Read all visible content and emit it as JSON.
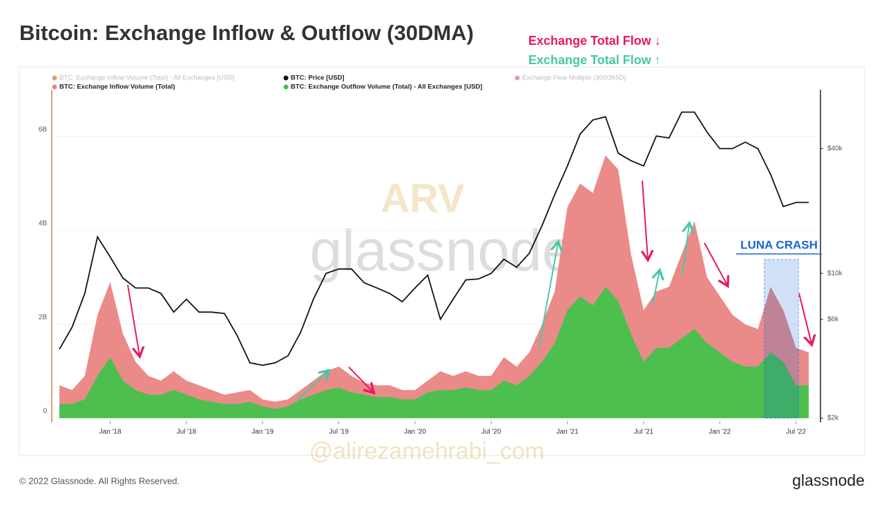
{
  "chart_data": {
    "type": "area-line",
    "title": "Bitcoin: Exchange Inflow & Outflow (30DMA)",
    "annotations": [
      {
        "text": "Exchange Total Flow ↓",
        "color": "#e8195f"
      },
      {
        "text": "Exchange Total Flow ↑",
        "color": "#45c9a6"
      }
    ],
    "highlight": {
      "label": "LUNA CRASH",
      "x": [
        "2022-04",
        "2022-07"
      ],
      "color": "#1565d8"
    },
    "x": [
      "2017-09",
      "2017-10",
      "2017-11",
      "2017-12",
      "2018-01",
      "2018-02",
      "2018-03",
      "2018-04",
      "2018-05",
      "2018-06",
      "2018-07",
      "2018-08",
      "2018-09",
      "2018-10",
      "2018-11",
      "2018-12",
      "2019-01",
      "2019-02",
      "2019-03",
      "2019-04",
      "2019-05",
      "2019-06",
      "2019-07",
      "2019-08",
      "2019-09",
      "2019-10",
      "2019-11",
      "2019-12",
      "2020-01",
      "2020-02",
      "2020-03",
      "2020-04",
      "2020-05",
      "2020-06",
      "2020-07",
      "2020-08",
      "2020-09",
      "2020-10",
      "2020-11",
      "2020-12",
      "2021-01",
      "2021-02",
      "2021-03",
      "2021-04",
      "2021-05",
      "2021-06",
      "2021-07",
      "2021-08",
      "2021-09",
      "2021-10",
      "2021-11",
      "2021-12",
      "2022-01",
      "2022-02",
      "2022-03",
      "2022-04",
      "2022-05",
      "2022-06",
      "2022-07",
      "2022-08"
    ],
    "series": [
      {
        "name": "BTC: Exchange Inflow Volume (Total)",
        "color": "#e8817f",
        "values": [
          700000000.0,
          600000000.0,
          900000000.0,
          2200000000.0,
          2900000000.0,
          1800000000.0,
          1200000000.0,
          900000000.0,
          800000000.0,
          1000000000.0,
          800000000.0,
          700000000.0,
          600000000.0,
          500000000.0,
          550000000.0,
          600000000.0,
          400000000.0,
          350000000.0,
          400000000.0,
          600000000.0,
          800000000.0,
          1000000000.0,
          1100000000.0,
          900000000.0,
          750000000.0,
          700000000.0,
          700000000.0,
          600000000.0,
          600000000.0,
          800000000.0,
          1000000000.0,
          900000000.0,
          1000000000.0,
          900000000.0,
          900000000.0,
          1300000000.0,
          1100000000.0,
          1400000000.0,
          2000000000.0,
          2700000000.0,
          4500000000.0,
          5000000000.0,
          4800000000.0,
          5600000000.0,
          5300000000.0,
          3500000000.0,
          2300000000.0,
          2700000000.0,
          2800000000.0,
          3500000000.0,
          4200000000.0,
          3000000000.0,
          2600000000.0,
          2200000000.0,
          2000000000.0,
          1900000000.0,
          2800000000.0,
          2300000000.0,
          1500000000.0,
          1400000000.0
        ]
      },
      {
        "name": "BTC: Exchange Outflow Volume (Total) - All Exchanges [USD]",
        "color": "#3ec34a",
        "values": [
          300000000.0,
          300000000.0,
          400000000.0,
          900000000.0,
          1300000000.0,
          800000000.0,
          600000000.0,
          500000000.0,
          500000000.0,
          600000000.0,
          500000000.0,
          400000000.0,
          350000000.0,
          300000000.0,
          300000000.0,
          350000000.0,
          250000000.0,
          200000000.0,
          250000000.0,
          400000000.0,
          500000000.0,
          600000000.0,
          650000000.0,
          550000000.0,
          500000000.0,
          450000000.0,
          450000000.0,
          400000000.0,
          400000000.0,
          550000000.0,
          600000000.0,
          600000000.0,
          650000000.0,
          600000000.0,
          600000000.0,
          800000000.0,
          700000000.0,
          900000000.0,
          1200000000.0,
          1600000000.0,
          2300000000.0,
          2600000000.0,
          2400000000.0,
          2800000000.0,
          2500000000.0,
          1800000000.0,
          1200000000.0,
          1500000000.0,
          1500000000.0,
          1700000000.0,
          1900000000.0,
          1600000000.0,
          1400000000.0,
          1200000000.0,
          1100000000.0,
          1100000000.0,
          1400000000.0,
          1200000000.0,
          700000000.0,
          700000000.0
        ]
      },
      {
        "name": "BTC: Price [USD]",
        "color": "#111111",
        "axis": "y2",
        "values": [
          4300,
          5500,
          8000,
          15000,
          12000,
          9500,
          8500,
          8500,
          8000,
          6500,
          7500,
          6500,
          6500,
          6400,
          5000,
          3700,
          3600,
          3700,
          4000,
          5200,
          7500,
          10000,
          10500,
          10500,
          9000,
          8500,
          8000,
          7300,
          8500,
          9800,
          6000,
          7500,
          9300,
          9400,
          10000,
          11700,
          10700,
          12500,
          17000,
          24000,
          33000,
          47000,
          55000,
          57000,
          38000,
          35000,
          33000,
          46000,
          45000,
          60000,
          60000,
          48000,
          40000,
          40000,
          43000,
          40000,
          30000,
          21000,
          22000,
          22000
        ]
      }
    ],
    "legend_extra": [
      {
        "name": "BTC: Exchange Inflow Volume (Total) - All Exchanges [USD]",
        "color": "#d9a07a"
      },
      {
        "name": "Exchange Flow Multiple (300/365D)",
        "color": "#e0a0a0"
      }
    ],
    "xticks": [
      {
        "value": "2018-01",
        "label": "Jan '18"
      },
      {
        "value": "2018-07",
        "label": "Jul '18"
      },
      {
        "value": "2019-01",
        "label": "Jan '19"
      },
      {
        "value": "2019-07",
        "label": "Jul '19"
      },
      {
        "value": "2020-01",
        "label": "Jan '20"
      },
      {
        "value": "2020-07",
        "label": "Jul '20"
      },
      {
        "value": "2021-01",
        "label": "Jan '21"
      },
      {
        "value": "2021-07",
        "label": "Jul '21"
      },
      {
        "value": "2022-01",
        "label": "Jan '22"
      },
      {
        "value": "2022-07",
        "label": "Jul '22"
      }
    ],
    "ylim": [
      0,
      7000000000.0
    ],
    "yticks": [
      0,
      {
        "value": 2000000000.0,
        "label": "2B"
      },
      {
        "value": 4000000000.0,
        "label": "4B"
      },
      {
        "value": 6000000000.0,
        "label": "6B"
      }
    ],
    "y2lim": [
      2000,
      77000
    ],
    "y2scale": "log",
    "y2ticks": [
      {
        "value": 2000,
        "label": "$2k"
      },
      {
        "value": 6000,
        "label": "$6k"
      },
      {
        "value": 10000,
        "label": "$10k"
      },
      {
        "value": 40000,
        "label": "$40k"
      }
    ],
    "grid": true,
    "watermarks": [
      "glassnode",
      "ARV",
      "@alirezamehrabi_com"
    ],
    "footer": "© 2022 Glassnode. All Rights Reserved.",
    "logo": "glassnode"
  }
}
